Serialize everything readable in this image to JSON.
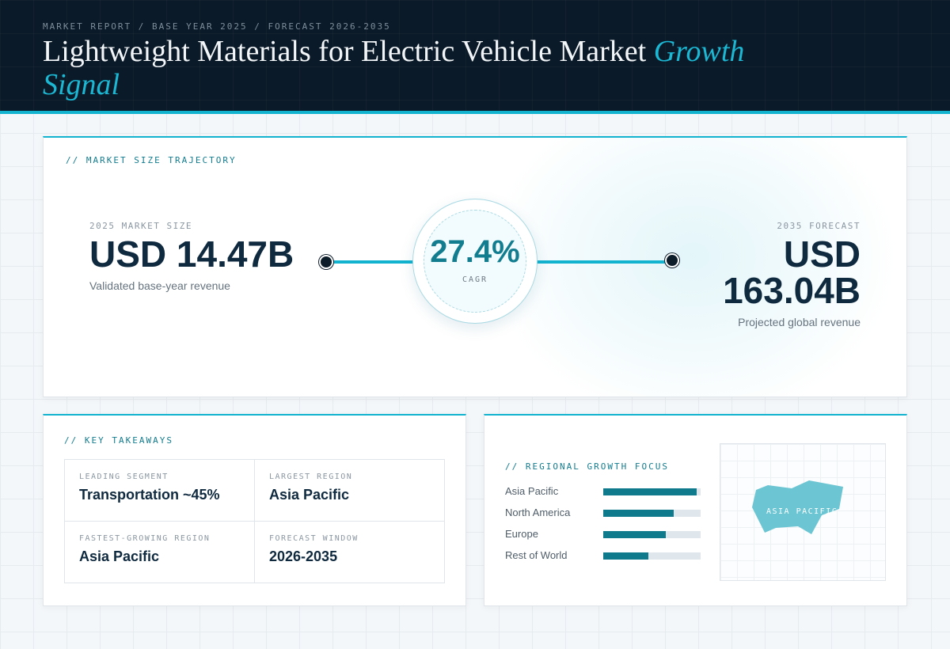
{
  "header": {
    "eyebrow": "MARKET REPORT / BASE YEAR 2025 / FORECAST 2026-2035",
    "title_main": "Lightweight Materials for Electric Vehicle Market",
    "title_accent": "Growth Signal"
  },
  "trajectory": {
    "section_label": "// MARKET SIZE TRAJECTORY",
    "start": {
      "label": "2025 MARKET SIZE",
      "value": "USD 14.47B",
      "note": "Validated base-year revenue"
    },
    "cagr": {
      "value": "27.4%",
      "label": "CAGR"
    },
    "end": {
      "label": "2035 FORECAST",
      "value_line1": "USD",
      "value_line2": "163.04B",
      "note": "Projected global revenue"
    }
  },
  "takeaways": {
    "section_label": "// KEY TAKEAWAYS",
    "items": [
      {
        "key": "LEADING SEGMENT",
        "value": "Transportation ~45%"
      },
      {
        "key": "LARGEST REGION",
        "value": "Asia Pacific"
      },
      {
        "key": "FASTEST-GROWING REGION",
        "value": "Asia Pacific"
      },
      {
        "key": "FORECAST WINDOW",
        "value": "2026-2035"
      }
    ]
  },
  "regional": {
    "section_label": "// REGIONAL GROWTH FOCUS",
    "regions": [
      {
        "name": "Asia Pacific",
        "share": 0.96
      },
      {
        "name": "North America",
        "share": 0.72
      },
      {
        "name": "Europe",
        "share": 0.64
      },
      {
        "name": "Rest of World",
        "share": 0.46
      }
    ],
    "map_label": "ASIA PACIFIC"
  },
  "colors": {
    "accent": "#12b3cf",
    "dark": "#0b1a28",
    "bar": "#0f7a8c",
    "map_fill": "#6cc5d3"
  }
}
